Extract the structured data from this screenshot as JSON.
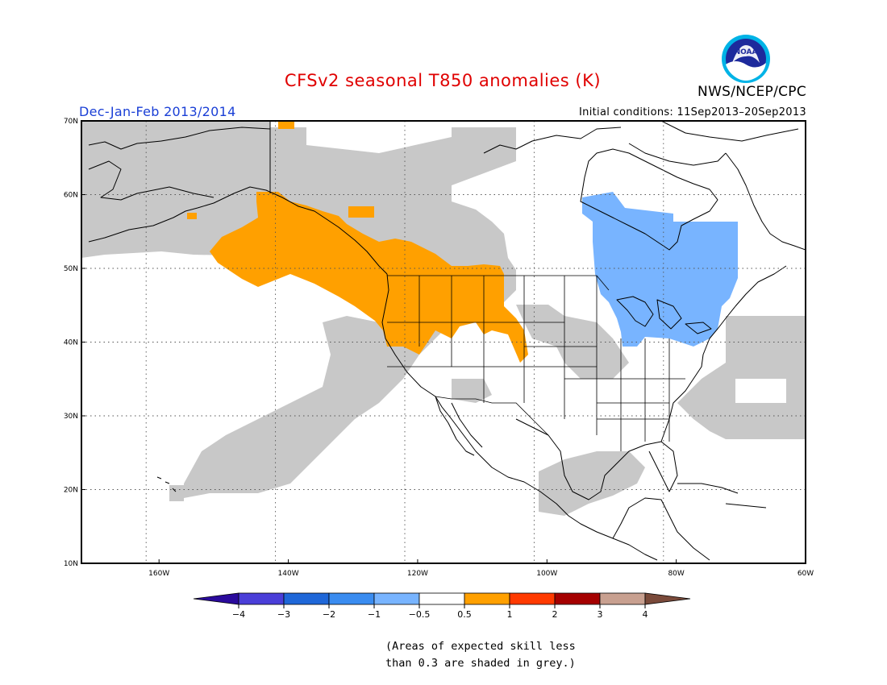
{
  "title": "CFSv2 seasonal T850 anomalies (K)",
  "agency": "NWS/NCEP/CPC",
  "logo_text": "NOAA",
  "season": "Dec-Jan-Feb 2013/2014",
  "initial_conditions": "Initial conditions: 11Sep2013–20Sep2013",
  "map": {
    "lon_range": [
      -172,
      -60
    ],
    "lat_range": [
      10,
      70
    ],
    "lat_ticks": [
      {
        "value": 70,
        "label": "70N"
      },
      {
        "value": 60,
        "label": "60N"
      },
      {
        "value": 50,
        "label": "50N"
      },
      {
        "value": 40,
        "label": "40N"
      },
      {
        "value": 30,
        "label": "30N"
      },
      {
        "value": 20,
        "label": "20N"
      },
      {
        "value": 10,
        "label": "10N"
      }
    ],
    "lon_ticks": [
      {
        "value": -160,
        "label": "160W"
      },
      {
        "value": -140,
        "label": "140W"
      },
      {
        "value": -120,
        "label": "120W"
      },
      {
        "value": -100,
        "label": "100W"
      },
      {
        "value": -80,
        "label": "80W"
      },
      {
        "value": -60,
        "label": "60W"
      }
    ],
    "grid": true,
    "colors": {
      "low_skill": "#c8c8c8",
      "warm_0p5_1": "#ffa000",
      "cool_m1_m0p5": "#78b4ff",
      "coast": "#000000"
    }
  },
  "colorbar": {
    "labels": [
      "-4",
      "-3",
      "-2",
      "-1",
      "-0.5",
      "0.5",
      "1",
      "2",
      "3",
      "4"
    ],
    "colors": [
      "#2a0a9c",
      "#4a3ed8",
      "#1f67d8",
      "#3a8cf0",
      "#78b4ff",
      "#ffffff",
      "#ffa000",
      "#ff3a00",
      "#a50000",
      "#c8a090",
      "#7a4a3a"
    ]
  },
  "note_lines": [
    "(Areas of expected skill less",
    "than 0.3 are shaded in grey.)"
  ]
}
